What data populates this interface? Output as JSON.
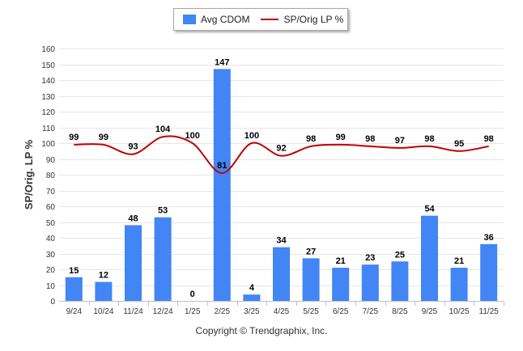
{
  "chart_data": {
    "type": "bar",
    "categories": [
      "9/24",
      "10/24",
      "11/24",
      "12/24",
      "1/25",
      "2/25",
      "3/25",
      "4/25",
      "5/25",
      "6/25",
      "7/25",
      "8/25",
      "9/25",
      "10/25",
      "11/25"
    ],
    "series": [
      {
        "name": "Avg CDOM",
        "type": "bar",
        "color": "#4285f4",
        "values": [
          15,
          12,
          48,
          53,
          0,
          147,
          4,
          34,
          27,
          21,
          23,
          25,
          54,
          21,
          36
        ]
      },
      {
        "name": "SP/Orig LP %",
        "type": "line",
        "color": "#c00000",
        "values": [
          99,
          99,
          93,
          104,
          100,
          81,
          100,
          92,
          98,
          99,
          98,
          97,
          98,
          95,
          98
        ]
      }
    ],
    "ylabel": "SP/Orig. LP %",
    "xlabel": "",
    "ylim": [
      0,
      160
    ],
    "yticks": [
      0,
      10,
      20,
      30,
      40,
      50,
      60,
      70,
      80,
      90,
      100,
      110,
      120,
      130,
      140,
      150,
      160
    ],
    "grid": true,
    "legend_position": "top-center"
  },
  "footer": {
    "copyright": "Copyright © Trendgraphix, Inc."
  }
}
